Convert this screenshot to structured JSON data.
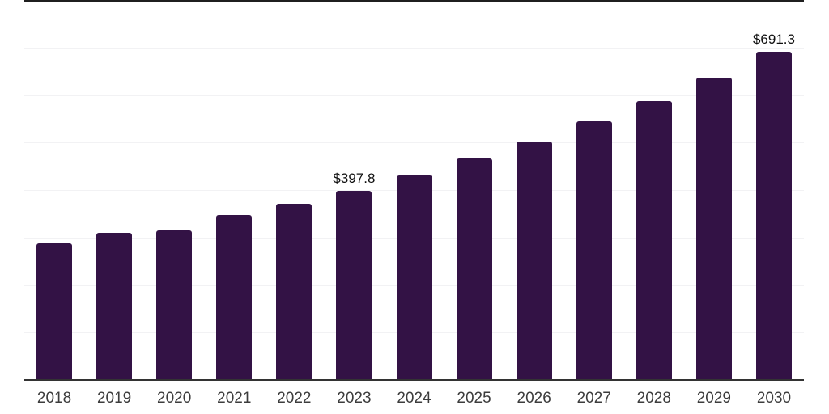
{
  "chart_data": {
    "type": "bar",
    "title": "",
    "xlabel": "",
    "ylabel": "",
    "categories": [
      "2018",
      "2019",
      "2020",
      "2021",
      "2022",
      "2023",
      "2024",
      "2025",
      "2026",
      "2027",
      "2028",
      "2029",
      "2030"
    ],
    "values": [
      287,
      309,
      315,
      347,
      371,
      397.8,
      430,
      466,
      502,
      544,
      587,
      636,
      691.3
    ],
    "data_labels": [
      "",
      "",
      "",
      "",
      "",
      "$397.8",
      "",
      "",
      "",
      "",
      "",
      "",
      "$691.3"
    ],
    "ylim": [
      0,
      800
    ],
    "gridline_step": 100,
    "grid": true,
    "legend_position": "none",
    "colors": {
      "bar": "#331245",
      "grid": "#f2f2f4",
      "axis": "#333333",
      "top_border": "#1f1f1f",
      "tick_label": "#3c3c3c",
      "data_label": "#0f0f0f",
      "background": "#ffffff"
    }
  }
}
